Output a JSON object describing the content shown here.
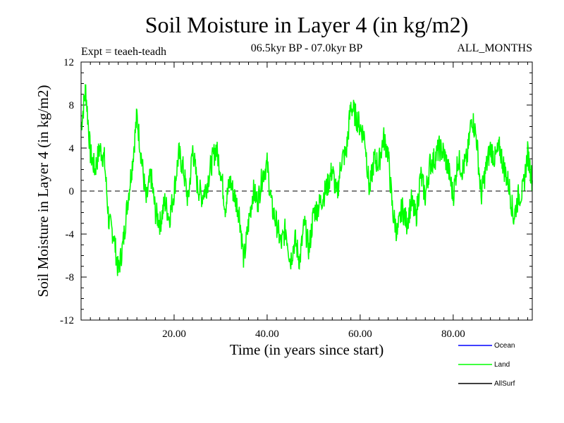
{
  "chart_data": {
    "type": "line",
    "title": "Soil Moisture in Layer 4 (in kg/m2)",
    "subtitle_left": "Expt = teaeh-teadh",
    "subtitle_center": "06.5kyr BP - 07.0kyr BP",
    "subtitle_right": "ALL_MONTHS",
    "xlabel": "Time (in years since start)",
    "ylabel": "Soil Moisture in Layer 4 (in kg/m2)",
    "xlim": [
      0,
      97
    ],
    "ylim": [
      -12,
      12
    ],
    "x_ticks": [
      20,
      40,
      60,
      80
    ],
    "x_tick_labels": [
      "20.00",
      "40.00",
      "60.00",
      "80.00"
    ],
    "y_ticks": [
      -12,
      -8,
      -4,
      0,
      4,
      8,
      12
    ],
    "y_tick_labels": [
      "-12",
      "-8",
      "-4",
      "0",
      "4",
      "8",
      "12"
    ],
    "zero_line": true,
    "legend": [
      {
        "name": "Ocean",
        "color": "#0000ff"
      },
      {
        "name": "Land",
        "color": "#00ff00"
      },
      {
        "name": "AllSurf",
        "color": "#000000"
      }
    ],
    "series": [
      {
        "name": "Land",
        "color": "#00ff00",
        "x": [
          0,
          1,
          2,
          3,
          4,
          5,
          6,
          7,
          8,
          9,
          10,
          11,
          12,
          13,
          14,
          15,
          16,
          17,
          18,
          19,
          20,
          21,
          22,
          23,
          24,
          25,
          26,
          27,
          28,
          29,
          30,
          31,
          32,
          33,
          34,
          35,
          36,
          37,
          38,
          39,
          40,
          41,
          42,
          43,
          44,
          45,
          46,
          47,
          48,
          49,
          50,
          51,
          52,
          53,
          54,
          55,
          56,
          57,
          58,
          59,
          60,
          61,
          62,
          63,
          64,
          65,
          66,
          67,
          68,
          69,
          70,
          71,
          72,
          73,
          74,
          75,
          76,
          77,
          78,
          79,
          80,
          81,
          82,
          83,
          84,
          85,
          86,
          87,
          88,
          89,
          90,
          91,
          92,
          93,
          94,
          95,
          96,
          97
        ],
        "values": [
          6.0,
          9.5,
          3.5,
          2.0,
          4.0,
          3.0,
          -3.0,
          -4.0,
          -7.5,
          -5.0,
          -1.0,
          2.5,
          7.0,
          3.0,
          -1.0,
          1.5,
          -2.0,
          -3.0,
          -1.0,
          -2.5,
          0.0,
          3.5,
          2.0,
          -1.0,
          4.0,
          0.5,
          -0.5,
          0.5,
          2.5,
          4.0,
          2.0,
          -1.5,
          1.0,
          -0.5,
          -2.0,
          -6.5,
          -3.0,
          0.0,
          -1.0,
          1.5,
          2.5,
          -1.5,
          -3.0,
          -5.0,
          -3.5,
          -6.5,
          -4.5,
          -6.5,
          -3.0,
          -5.5,
          -2.0,
          -1.5,
          -0.5,
          0.5,
          2.0,
          -0.5,
          3.0,
          3.5,
          8.0,
          7.0,
          6.0,
          5.0,
          0.0,
          3.0,
          2.5,
          5.0,
          3.5,
          -2.0,
          -4.0,
          -1.5,
          -3.0,
          -1.0,
          -2.5,
          1.5,
          -0.5,
          2.5,
          3.0,
          4.0,
          3.5,
          2.0,
          -0.5,
          3.0,
          2.0,
          3.0,
          7.0,
          5.0,
          -0.5,
          2.0,
          4.0,
          3.0,
          4.0,
          2.0,
          0.5,
          -2.5,
          -0.5,
          0.0,
          3.5,
          1.0
        ]
      }
    ]
  }
}
